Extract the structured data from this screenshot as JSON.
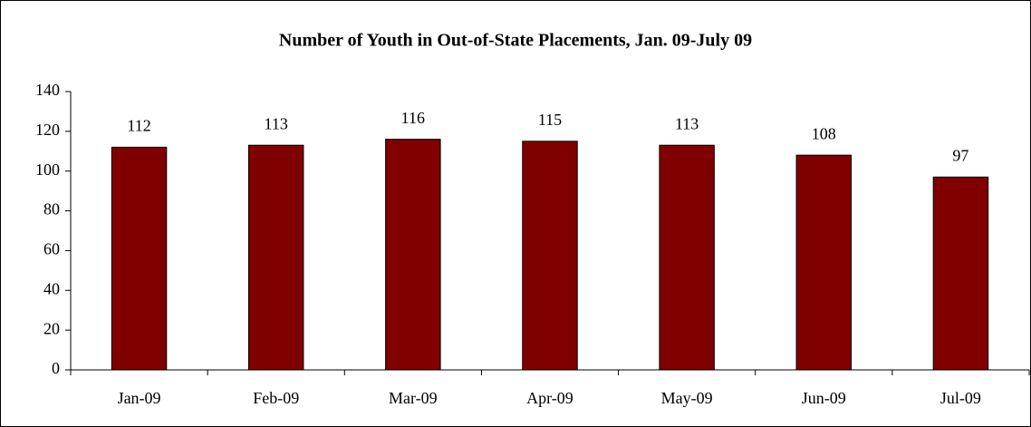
{
  "chart_data": {
    "type": "bar",
    "title": "Number of Youth in Out-of-State Placements, Jan. 09-July 09",
    "categories": [
      "Jan-09",
      "Feb-09",
      "Mar-09",
      "Apr-09",
      "May-09",
      "Jun-09",
      "Jul-09"
    ],
    "values": [
      112,
      113,
      116,
      115,
      113,
      108,
      97
    ],
    "color": "#800000",
    "ylim": [
      0,
      140
    ],
    "yticks": [
      0,
      20,
      40,
      60,
      80,
      100,
      120,
      140
    ],
    "grid": false,
    "data_labels": true
  }
}
